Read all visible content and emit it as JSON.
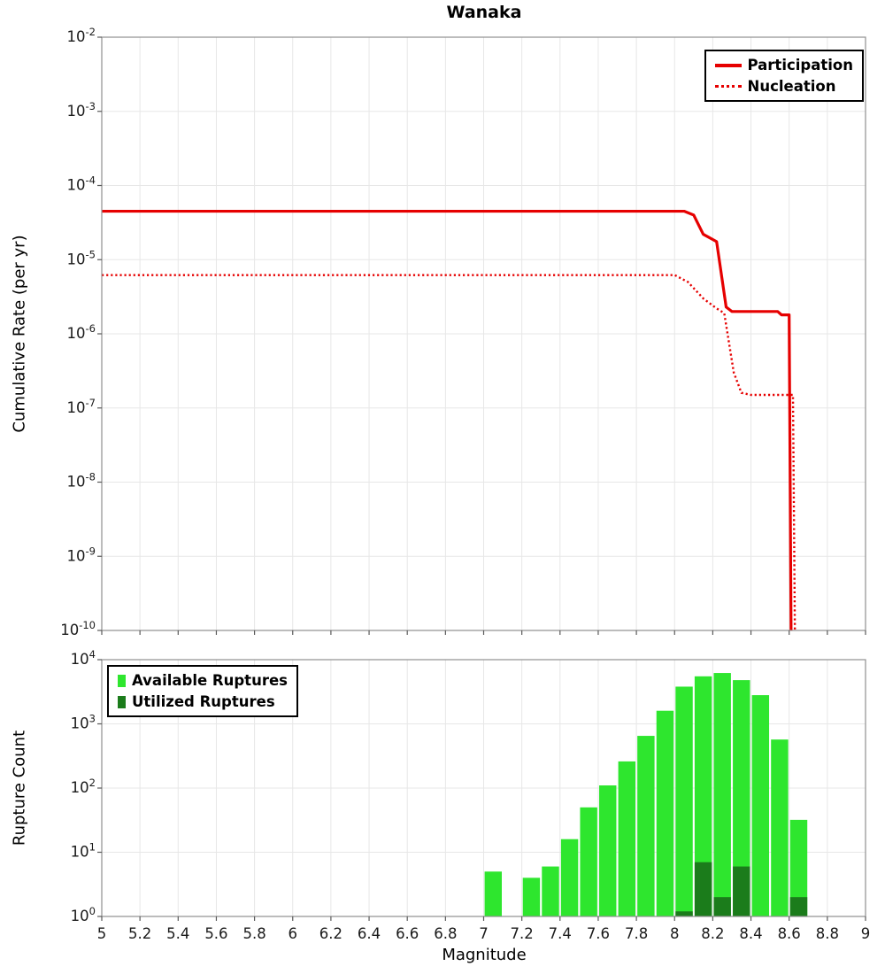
{
  "title": "Wanaka",
  "chart_data": [
    {
      "id": "cumulative-rate",
      "type": "line",
      "title": "Wanaka",
      "ylabel": "Cumulative Rate (per yr)",
      "xlabel": "",
      "y_scale": "log",
      "xlim": [
        5,
        9
      ],
      "ylim_exp": [
        -10,
        -2
      ],
      "x_grid_step": 0.2,
      "grid": true,
      "legend_position": "top-right",
      "series": [
        {
          "name": "Participation",
          "style": "solid",
          "color": "#e60000",
          "points": [
            [
              5.0,
              4.5e-05
            ],
            [
              8.05,
              4.5e-05
            ],
            [
              8.1,
              4e-05
            ],
            [
              8.15,
              2.2e-05
            ],
            [
              8.22,
              1.75e-05
            ],
            [
              8.27,
              2.3e-06
            ],
            [
              8.3,
              2e-06
            ],
            [
              8.54,
              2e-06
            ],
            [
              8.56,
              1.8e-06
            ],
            [
              8.6,
              1.8e-06
            ],
            [
              8.61,
              1e-10
            ]
          ]
        },
        {
          "name": "Nucleation",
          "style": "dotted",
          "color": "#e60000",
          "points": [
            [
              5.0,
              6.2e-06
            ],
            [
              8.0,
              6.2e-06
            ],
            [
              8.07,
              5e-06
            ],
            [
              8.15,
              3e-06
            ],
            [
              8.22,
              2.2e-06
            ],
            [
              8.26,
              1.9e-06
            ],
            [
              8.31,
              3e-07
            ],
            [
              8.35,
              1.6e-07
            ],
            [
              8.4,
              1.5e-07
            ],
            [
              8.62,
              1.5e-07
            ],
            [
              8.63,
              1e-10
            ]
          ]
        }
      ]
    },
    {
      "id": "rupture-count",
      "type": "bar",
      "ylabel": "Rupture Count",
      "xlabel": "Magnitude",
      "y_scale": "log",
      "xlim": [
        5,
        9
      ],
      "ylim_exp": [
        0,
        4
      ],
      "x_grid_step": 0.2,
      "grid": true,
      "legend_position": "top-left",
      "bar_width": 0.09,
      "x_tick_labels": [
        "5",
        "5.2",
        "5.4",
        "5.6",
        "5.8",
        "6",
        "6.2",
        "6.4",
        "6.6",
        "6.8",
        "7",
        "7.2",
        "7.4",
        "7.6",
        "7.8",
        "8",
        "8.2",
        "8.4",
        "8.6",
        "8.8",
        "9"
      ],
      "series": [
        {
          "name": "Available Ruptures",
          "color": "#2ee62e",
          "x": [
            7.05,
            7.25,
            7.35,
            7.45,
            7.55,
            7.65,
            7.75,
            7.85,
            7.95,
            8.05,
            8.15,
            8.25,
            8.35,
            8.45,
            8.55,
            8.65
          ],
          "counts": [
            5,
            4,
            6,
            16,
            50,
            110,
            260,
            650,
            1600,
            3800,
            5500,
            6200,
            4800,
            2800,
            570,
            32
          ]
        },
        {
          "name": "Utilized Ruptures",
          "color": "#1b7c1b",
          "x": [
            8.05,
            8.15,
            8.25,
            8.35,
            8.65
          ],
          "counts": [
            1.2,
            7,
            2,
            6,
            2
          ]
        }
      ]
    }
  ]
}
